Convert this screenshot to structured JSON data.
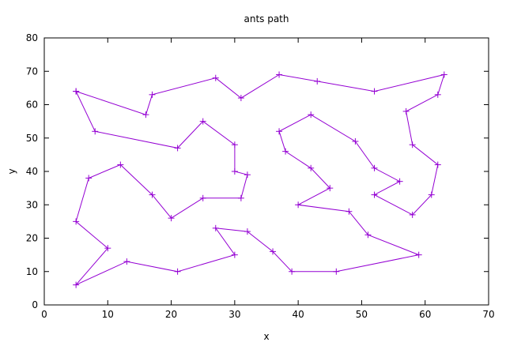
{
  "chart_data": {
    "type": "line",
    "title": "ants path",
    "xlabel": "x",
    "ylabel": "y",
    "xlim": [
      0,
      70
    ],
    "ylim": [
      0,
      80
    ],
    "xticks": [
      0,
      10,
      20,
      30,
      40,
      50,
      60,
      70
    ],
    "yticks": [
      0,
      10,
      20,
      30,
      40,
      50,
      60,
      70,
      80
    ],
    "grid": false,
    "legend": "none",
    "line_color": "#9400d3",
    "series": [
      {
        "x": [
          5,
          16,
          17,
          27,
          31,
          37,
          43,
          52,
          63,
          62,
          57,
          58,
          62,
          61,
          58,
          52,
          56,
          52,
          49,
          42,
          37,
          38,
          42,
          45,
          40,
          48,
          51,
          59,
          46,
          39,
          36,
          32,
          27,
          30,
          21,
          13,
          5,
          10,
          5,
          7,
          12,
          17,
          20,
          25,
          31,
          32,
          30,
          30,
          25,
          21,
          8,
          5
        ],
        "y": [
          64,
          57,
          63,
          68,
          62,
          69,
          67,
          64,
          69,
          63,
          58,
          48,
          42,
          33,
          27,
          33,
          37,
          41,
          49,
          57,
          52,
          46,
          41,
          35,
          30,
          28,
          21,
          15,
          10,
          10,
          16,
          22,
          23,
          15,
          10,
          13,
          6,
          17,
          25,
          38,
          42,
          33,
          26,
          32,
          32,
          39,
          40,
          48,
          55,
          47,
          52,
          64
        ]
      }
    ]
  }
}
